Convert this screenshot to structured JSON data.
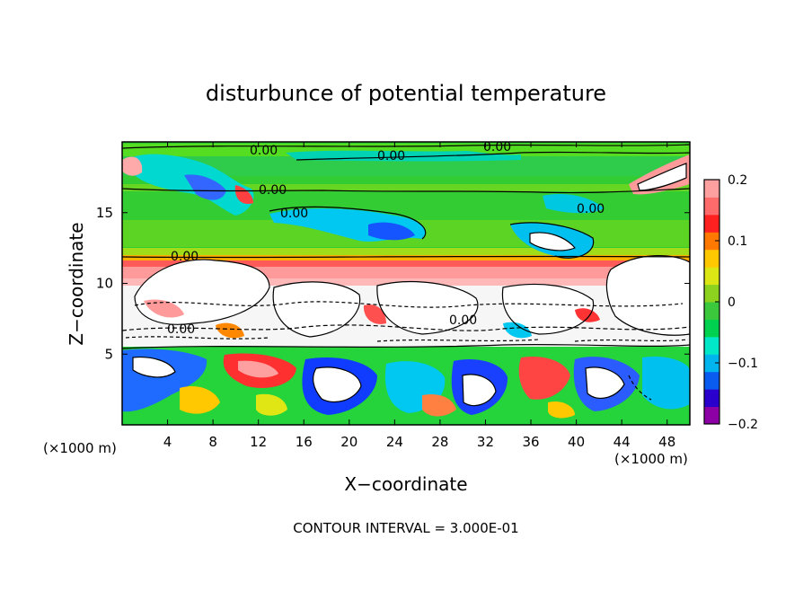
{
  "chart_data": {
    "type": "heatmap",
    "title": "disturbunce of potential temperature",
    "xlabel": "X−coordinate",
    "ylabel": "Z−coordinate",
    "x_unit_left": "(×1000 m)",
    "x_unit_right": "(×1000 m)",
    "x_ticks": [
      4,
      8,
      12,
      16,
      20,
      24,
      28,
      32,
      36,
      40,
      44,
      48
    ],
    "y_ticks": [
      5,
      10,
      15
    ],
    "xlim": [
      0,
      50
    ],
    "ylim": [
      0,
      20
    ],
    "colorbar": {
      "range": [
        -0.2,
        0.2
      ],
      "ticks": [
        "0.2",
        "0.1",
        "0",
        "−0.1",
        "−0.2"
      ],
      "colors": [
        "#8c00a6",
        "#2a00cc",
        "#0a5cf0",
        "#00b4ee",
        "#00e8c8",
        "#00d250",
        "#3cc83c",
        "#8cd21e",
        "#dce614",
        "#ffc800",
        "#ff7800",
        "#ff2020",
        "#ff6a6a",
        "#ffa0a0"
      ]
    },
    "contour_labels": [
      "0.00",
      "0.00",
      "0.00",
      "0.00",
      "0.00",
      "0.00",
      "0.00",
      "0.00",
      "0.00"
    ],
    "grid": false,
    "legend": "colorbar at right",
    "layers": [
      {
        "z_range": [
          0,
          5.2
        ],
        "pattern": "turbulent eddies, mostly negative (blue/cyan) with positive cores"
      },
      {
        "z_range": [
          5.2,
          11
        ],
        "pattern": "broken cloud band with dense contours"
      },
      {
        "z_range": [
          10.2,
          11.5
        ],
        "pattern": "strong positive band (red/pink)"
      },
      {
        "z_range": [
          11.5,
          20
        ],
        "pattern": "near zero (green) with scattered negative patches"
      }
    ]
  },
  "footer": {
    "contour_interval": "CONTOUR INTERVAL = 3.000E-01"
  }
}
